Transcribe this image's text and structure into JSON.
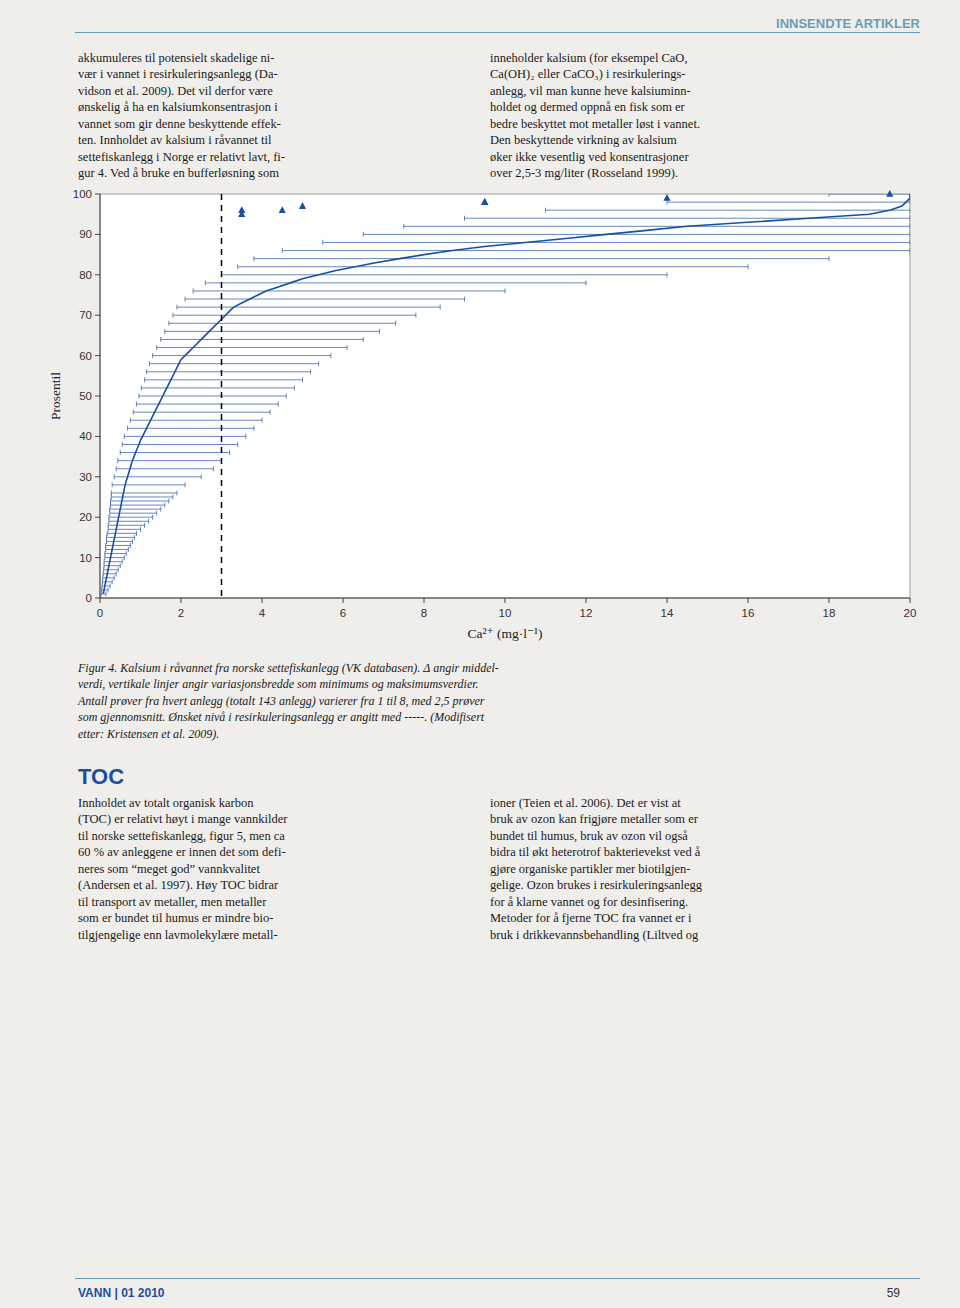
{
  "header_text": "INNSENDTE ARTIKLER",
  "text_col1_lines": [
    "akkumuleres til potensielt skadelige ni-",
    "vær i vannet i resirkuleringsanlegg (Da-",
    "vidson et al. 2009). Det vil derfor være",
    "ønskelig å ha en kalsiumkonsentrasjon i",
    "vannet som gir denne beskyttende effek-",
    "ten. Innholdet av kalsium i råvannet til",
    "settefiskanlegg i Norge er relativt lavt, fi-",
    "gur 4. Ved å bruke en bufferløsning som"
  ],
  "text_col2_lines": [
    "inneholder kalsium (for eksempel CaO,",
    "Ca(OH)₂ eller CaCO₃) i resirkulerings-",
    "anlegg, vil man kunne heve kalsiuminn-",
    "holdet og dermed oppnå en fisk som er",
    "bedre beskyttet mot metaller løst i vannet.",
    "Den beskyttende virkning av kalsium",
    "øker ikke vesentlig ved konsentrasjoner",
    "over 2,5-3 mg/liter (Rosseland 1999)."
  ],
  "caption_lines": [
    "Figur 4. Kalsium i råvannet fra norske settefiskanlegg (VK databasen). Δ angir middel-",
    "verdi, vertikale linjer angir variasjonsbredde som minimums og maksimumsverdier.",
    "Antall prøver fra hvert anlegg (totalt 143 anlegg) varierer fra 1 til 8, med 2,5 prøver",
    "som gjennomsnitt. Ønsket nivå i resirkuleringsanlegg er angitt med -----. (Modifisert",
    "etter: Kristensen et al. 2009)."
  ],
  "toc_header": "TOC",
  "toc_col1_lines": [
    "Innholdet av totalt organisk karbon",
    "(TOC) er relativt høyt i mange vannkilder",
    "til norske settefiskanlegg, figur 5, men ca",
    "60 % av anleggene er innen det som defi-",
    "neres som “meget god” vannkvalitet",
    "(Andersen et al. 1997). Høy TOC bidrar",
    "til transport av metaller, men metaller",
    "som er bundet til humus er mindre bio-",
    "tilgjengelige enn lavmolekylære metall-"
  ],
  "toc_col2_lines": [
    "ioner (Teien et al. 2006). Det er vist at",
    "bruk av ozon kan frigjøre metaller som er",
    "bundet til humus, bruk av ozon vil også",
    "bidra til økt heterotrof bakterievekst ved å",
    "gjøre organiske partikler mer biotilgjen-",
    "gelige. Ozon brukes i resirkuleringsanlegg",
    "for å klarne vannet og for desinfisering.",
    "Metoder for å fjerne TOC fra vannet er i",
    "bruk i drikkevannsbehandling (Liltved og"
  ],
  "footer_left": "VANN | 01 2010",
  "footer_right": "59",
  "chart_data": {
    "type": "line",
    "xlabel": "Ca²⁺ (mg·l⁻¹)",
    "ylabel": "Prosentil",
    "xlim": [
      0,
      20
    ],
    "ylim": [
      0,
      100
    ],
    "xticks": [
      0,
      2,
      4,
      6,
      8,
      10,
      12,
      14,
      16,
      18,
      20
    ],
    "yticks": [
      0,
      10,
      20,
      30,
      40,
      50,
      60,
      70,
      80,
      90,
      100
    ],
    "grid": false,
    "series": [
      {
        "type": "line",
        "color": "#1a4fa0",
        "x": [
          0.08,
          0.1,
          0.12,
          0.14,
          0.16,
          0.18,
          0.2,
          0.22,
          0.24,
          0.26,
          0.28,
          0.3,
          0.32,
          0.34,
          0.36,
          0.38,
          0.4,
          0.42,
          0.44,
          0.46,
          0.48,
          0.5,
          0.52,
          0.54,
          0.56,
          0.58,
          0.6,
          0.62,
          0.65,
          0.68,
          0.71,
          0.74,
          0.77,
          0.8,
          0.84,
          0.88,
          0.92,
          0.96,
          1.0,
          1.05,
          1.1,
          1.15,
          1.2,
          1.25,
          1.3,
          1.35,
          1.4,
          1.45,
          1.5,
          1.55,
          1.6,
          1.65,
          1.7,
          1.75,
          1.8,
          1.85,
          1.9,
          1.95,
          2.0,
          2.1,
          2.2,
          2.3,
          2.4,
          2.5,
          2.6,
          2.7,
          2.8,
          2.9,
          3.0,
          3.1,
          3.2,
          3.3,
          3.5,
          3.7,
          3.9,
          4.1,
          4.4,
          4.7,
          5.0,
          5.4,
          5.8,
          6.3,
          6.8,
          7.4,
          8.0,
          8.7,
          9.5,
          10.5,
          11.5,
          12.5,
          13.5,
          14.5,
          16.0,
          17.5,
          19.0,
          19.5,
          19.8,
          19.9,
          20.0,
          20.0
        ],
        "values": [
          1,
          2,
          3,
          4,
          5,
          6,
          7,
          8,
          9,
          10,
          11,
          12,
          13,
          14,
          15,
          16,
          17,
          18,
          19,
          20,
          21,
          22,
          23,
          24,
          25,
          26,
          27,
          28,
          29,
          30,
          31,
          32,
          33,
          34,
          35,
          36,
          37,
          38,
          39,
          40,
          41,
          42,
          43,
          44,
          45,
          46,
          47,
          48,
          49,
          50,
          51,
          52,
          53,
          54,
          55,
          56,
          57,
          58,
          59,
          60,
          61,
          62,
          63,
          64,
          65,
          66,
          67,
          68,
          69,
          70,
          71,
          72,
          73,
          74,
          75,
          76,
          77,
          78,
          79,
          80,
          81,
          82,
          83,
          84,
          85,
          86,
          87,
          88,
          89,
          90,
          91,
          92,
          93,
          94,
          95,
          96,
          97,
          98,
          99,
          100
        ],
        "x_min": [
          0.03,
          0.04,
          0.05,
          0.06,
          0.07,
          0.08,
          0.09,
          0.1,
          0.1,
          0.12,
          0.12,
          0.14,
          0.14,
          0.16,
          0.16,
          0.18,
          0.2,
          0.2,
          0.22,
          0.22,
          0.24,
          0.24,
          0.26,
          0.26,
          0.28,
          0.28,
          null,
          0.3,
          null,
          0.35,
          null,
          0.4,
          null,
          0.44,
          null,
          0.5,
          null,
          0.55,
          null,
          0.6,
          null,
          0.68,
          null,
          0.75,
          null,
          0.82,
          null,
          0.9,
          null,
          0.96,
          null,
          1.02,
          null,
          1.1,
          null,
          1.15,
          null,
          1.22,
          null,
          1.3,
          null,
          1.4,
          null,
          1.5,
          null,
          1.6,
          null,
          1.7,
          null,
          1.8,
          null,
          1.9,
          null,
          2.1,
          null,
          2.3,
          null,
          2.6,
          null,
          3.0,
          null,
          3.4,
          null,
          3.8,
          null,
          4.5,
          null,
          5.5,
          null,
          6.5,
          null,
          7.5,
          null,
          9.0,
          null,
          11.0,
          null,
          14.0,
          null,
          18.0
        ],
        "x_max": [
          0.15,
          0.2,
          0.25,
          0.3,
          0.35,
          0.4,
          0.45,
          0.5,
          0.55,
          0.6,
          0.65,
          0.7,
          0.75,
          0.8,
          0.85,
          0.9,
          1.0,
          1.1,
          1.2,
          1.3,
          1.4,
          1.5,
          1.6,
          1.7,
          1.8,
          1.9,
          null,
          2.1,
          null,
          2.5,
          null,
          2.8,
          null,
          3.0,
          null,
          3.2,
          null,
          3.4,
          null,
          3.6,
          null,
          3.8,
          null,
          4.0,
          null,
          4.2,
          null,
          4.4,
          null,
          4.6,
          null,
          4.8,
          null,
          5.0,
          null,
          5.2,
          null,
          5.4,
          null,
          5.7,
          null,
          6.1,
          null,
          6.5,
          null,
          6.9,
          null,
          7.3,
          null,
          7.8,
          null,
          8.4,
          null,
          9.0,
          null,
          10.0,
          null,
          12.0,
          null,
          14.0,
          null,
          16.0,
          null,
          18.0,
          null,
          20.0,
          null,
          20.0,
          null,
          20.0,
          null,
          20.0,
          null,
          20.0,
          null,
          20.0,
          null,
          20.0,
          null,
          20.0
        ]
      },
      {
        "type": "scatter",
        "marker": "triangle",
        "color": "#1a4fa0",
        "x": [
          3.5,
          5.0,
          9.5,
          14.0,
          19.5,
          3.5,
          4.5,
          9.5
        ],
        "values": [
          96,
          97,
          98,
          99,
          100,
          95,
          96,
          98
        ]
      }
    ],
    "reference_lines": [
      {
        "x": 3.0,
        "line_style": "dashed",
        "color": "#000000"
      }
    ]
  }
}
